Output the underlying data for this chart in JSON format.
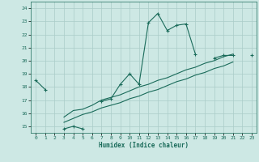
{
  "title": "",
  "xlabel": "Humidex (Indice chaleur)",
  "ylabel": "",
  "bg_color": "#cde8e4",
  "grid_color": "#aaccc8",
  "line_color": "#1a6b5a",
  "xlim": [
    -0.5,
    23.5
  ],
  "ylim": [
    14.5,
    24.5
  ],
  "xticks": [
    0,
    1,
    2,
    3,
    4,
    5,
    6,
    7,
    8,
    9,
    10,
    11,
    12,
    13,
    14,
    15,
    16,
    17,
    18,
    19,
    20,
    21,
    22,
    23
  ],
  "yticks": [
    15,
    16,
    17,
    18,
    19,
    20,
    21,
    22,
    23,
    24
  ],
  "series1_x": [
    0,
    1,
    3,
    4,
    5,
    7,
    8,
    9,
    10,
    11,
    12,
    13,
    14,
    15,
    16,
    17,
    19,
    20,
    21,
    23
  ],
  "series1_y": [
    18.5,
    17.8,
    14.8,
    15.0,
    14.8,
    16.9,
    17.1,
    18.2,
    19.0,
    18.2,
    22.9,
    23.6,
    22.3,
    22.7,
    22.8,
    20.5,
    20.2,
    20.4,
    20.4,
    20.4
  ],
  "series1_breaks": [
    1,
    5,
    17
  ],
  "series2_x": [
    3,
    4,
    5,
    6,
    7,
    8,
    9,
    10,
    11,
    12,
    13,
    14,
    15,
    16,
    17,
    18,
    19,
    20,
    21
  ],
  "series2_y": [
    15.7,
    16.2,
    16.3,
    16.6,
    17.0,
    17.2,
    17.4,
    17.7,
    18.0,
    18.2,
    18.5,
    18.7,
    19.0,
    19.3,
    19.5,
    19.8,
    20.0,
    20.3,
    20.5
  ],
  "series3_x": [
    3,
    4,
    5,
    6,
    7,
    8,
    9,
    10,
    11,
    12,
    13,
    14,
    15,
    16,
    17,
    18,
    19,
    20,
    21
  ],
  "series3_y": [
    15.3,
    15.6,
    15.9,
    16.1,
    16.4,
    16.6,
    16.8,
    17.1,
    17.3,
    17.6,
    17.8,
    18.1,
    18.4,
    18.6,
    18.9,
    19.1,
    19.4,
    19.6,
    19.9
  ]
}
